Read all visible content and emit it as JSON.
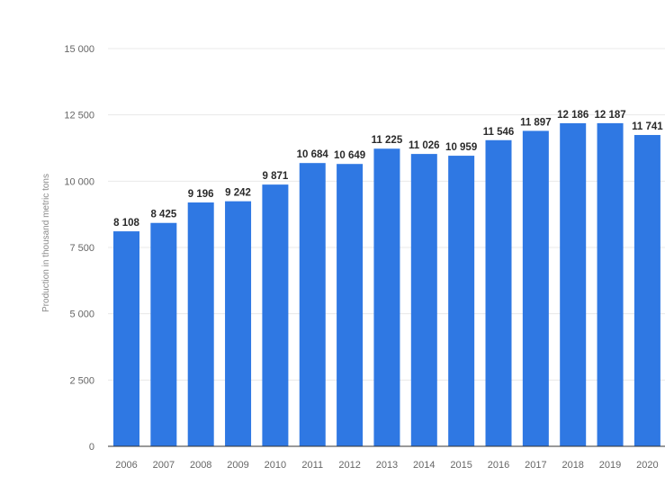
{
  "chart_data": {
    "type": "bar",
    "ylabel": "Production in thousand metric tons",
    "categories": [
      "2006",
      "2007",
      "2008",
      "2009",
      "2010",
      "2011",
      "2012",
      "2013",
      "2014",
      "2015",
      "2016",
      "2017",
      "2018",
      "2019",
      "2020"
    ],
    "values": [
      8108,
      8425,
      9196,
      9242,
      9871,
      10684,
      10649,
      11225,
      11026,
      10959,
      11546,
      11897,
      12186,
      12187,
      11741
    ],
    "value_labels": [
      "8 108",
      "8 425",
      "9 196",
      "9 242",
      "9 871",
      "10 684",
      "10 649",
      "11 225",
      "11 026",
      "10 959",
      "11 546",
      "11 897",
      "12 186",
      "12 187",
      "11 741"
    ],
    "yticks": [
      0,
      2500,
      5000,
      7500,
      10000,
      12500,
      15000
    ],
    "ytick_labels": [
      "0",
      "2 500",
      "5 000",
      "7 500",
      "10 000",
      "12 500",
      "15 000"
    ],
    "ylim": [
      0,
      15000
    ],
    "grid": true,
    "colors": {
      "bar": "#2f78e3",
      "grid": "#e8e8e8",
      "axis": "#333333"
    }
  }
}
